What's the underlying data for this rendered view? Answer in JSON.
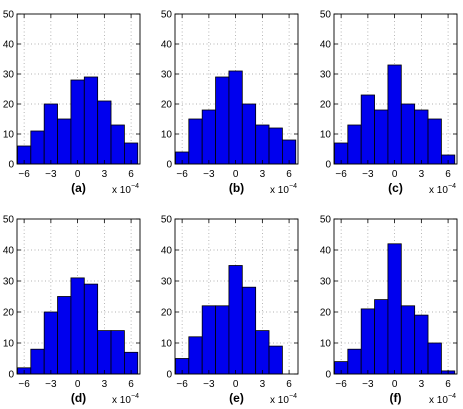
{
  "chart_data": [
    {
      "type": "bar",
      "panel_label": "(a)",
      "x_scale_label": "x 10",
      "x_scale_exponent": "−4",
      "xtick_labels": [
        "−6",
        "−3",
        "0",
        "3",
        "6"
      ],
      "ytick_labels": [
        "0",
        "10",
        "20",
        "30",
        "40",
        "50"
      ],
      "xticks": [
        -6,
        -3,
        0,
        3,
        6
      ],
      "yticks": [
        0,
        10,
        20,
        30,
        40,
        50
      ],
      "xlim": [
        -6.8,
        7.0
      ],
      "ylim": [
        0,
        50
      ],
      "grid": true,
      "bins": [
        -6,
        -4.5,
        -3,
        -1.5,
        0,
        1.5,
        3,
        4.5,
        6
      ],
      "bin_width": 1.5,
      "values": [
        6,
        11,
        20,
        15,
        28,
        29,
        21,
        13,
        7
      ],
      "bar_color": "#0000ee"
    },
    {
      "type": "bar",
      "panel_label": "(b)",
      "x_scale_label": "x 10",
      "x_scale_exponent": "−4",
      "xtick_labels": [
        "−6",
        "−3",
        "0",
        "3",
        "6"
      ],
      "ytick_labels": [
        "0",
        "10",
        "20",
        "30",
        "40",
        "50"
      ],
      "xticks": [
        -6,
        -3,
        0,
        3,
        6
      ],
      "yticks": [
        0,
        10,
        20,
        30,
        40,
        50
      ],
      "xlim": [
        -6.8,
        7.0
      ],
      "ylim": [
        0,
        50
      ],
      "grid": true,
      "bins": [
        -6,
        -4.5,
        -3,
        -1.5,
        0,
        1.5,
        3,
        4.5,
        6
      ],
      "bin_width": 1.5,
      "values": [
        4,
        15,
        18,
        29,
        31,
        20,
        13,
        12,
        8
      ],
      "bar_color": "#0000ee"
    },
    {
      "type": "bar",
      "panel_label": "(c)",
      "x_scale_label": "x 10",
      "x_scale_exponent": "−4",
      "xtick_labels": [
        "−6",
        "−3",
        "0",
        "3",
        "6"
      ],
      "ytick_labels": [
        "0",
        "10",
        "20",
        "30",
        "40",
        "50"
      ],
      "xticks": [
        -6,
        -3,
        0,
        3,
        6
      ],
      "yticks": [
        0,
        10,
        20,
        30,
        40,
        50
      ],
      "xlim": [
        -6.8,
        7.0
      ],
      "ylim": [
        0,
        50
      ],
      "grid": true,
      "bins": [
        -6,
        -4.5,
        -3,
        -1.5,
        0,
        1.5,
        3,
        4.5,
        6
      ],
      "bin_width": 1.5,
      "values": [
        7,
        13,
        23,
        18,
        33,
        20,
        18,
        15,
        3
      ],
      "bar_color": "#0000ee"
    },
    {
      "type": "bar",
      "panel_label": "(d)",
      "x_scale_label": "x 10",
      "x_scale_exponent": "−4",
      "xtick_labels": [
        "−6",
        "−3",
        "0",
        "3",
        "6"
      ],
      "ytick_labels": [
        "0",
        "10",
        "20",
        "30",
        "40",
        "50"
      ],
      "xticks": [
        -6,
        -3,
        0,
        3,
        6
      ],
      "yticks": [
        0,
        10,
        20,
        30,
        40,
        50
      ],
      "xlim": [
        -6.8,
        7.0
      ],
      "ylim": [
        0,
        50
      ],
      "grid": true,
      "bins": [
        -6,
        -4.5,
        -3,
        -1.5,
        0,
        1.5,
        3,
        4.5,
        6
      ],
      "bin_width": 1.5,
      "values": [
        2,
        8,
        20,
        25,
        31,
        29,
        14,
        14,
        7
      ],
      "bar_color": "#0000ee"
    },
    {
      "type": "bar",
      "panel_label": "(e)",
      "x_scale_label": "x 10",
      "x_scale_exponent": "−4",
      "xtick_labels": [
        "−6",
        "−3",
        "0",
        "3",
        "6"
      ],
      "ytick_labels": [
        "0",
        "10",
        "20",
        "30",
        "40",
        "50"
      ],
      "xticks": [
        -6,
        -3,
        0,
        3,
        6
      ],
      "yticks": [
        0,
        10,
        20,
        30,
        40,
        50
      ],
      "xlim": [
        -6.8,
        7.0
      ],
      "ylim": [
        0,
        50
      ],
      "grid": true,
      "bins": [
        -6,
        -4.5,
        -3,
        -1.5,
        0,
        1.5,
        3,
        4.5,
        6
      ],
      "bin_width": 1.5,
      "values": [
        5,
        12,
        22,
        22,
        35,
        28,
        14,
        9,
        0
      ],
      "bar_color": "#0000ee"
    },
    {
      "type": "bar",
      "panel_label": "(f)",
      "x_scale_label": "x 10",
      "x_scale_exponent": "−4",
      "xtick_labels": [
        "−6",
        "−3",
        "0",
        "3",
        "6"
      ],
      "ytick_labels": [
        "0",
        "10",
        "20",
        "30",
        "40",
        "50"
      ],
      "xticks": [
        -6,
        -3,
        0,
        3,
        6
      ],
      "yticks": [
        0,
        10,
        20,
        30,
        40,
        50
      ],
      "xlim": [
        -6.8,
        7.0
      ],
      "ylim": [
        0,
        50
      ],
      "grid": true,
      "bins": [
        -6,
        -4.5,
        -3,
        -1.5,
        0,
        1.5,
        3,
        4.5,
        6
      ],
      "bin_width": 1.5,
      "values": [
        4,
        8,
        21,
        24,
        42,
        22,
        19,
        10,
        1
      ],
      "bar_color": "#0000ee"
    }
  ]
}
